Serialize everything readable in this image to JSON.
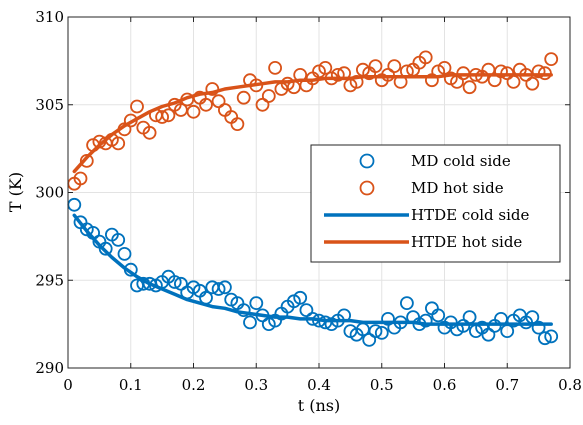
{
  "chart_data": {
    "type": "scatter",
    "xlabel": "t (ns)",
    "ylabel": "T (K)",
    "xlim": [
      0,
      0.8
    ],
    "ylim": [
      290,
      310
    ],
    "x_ticks": [
      "0",
      "0.1",
      "0.2",
      "0.3",
      "0.4",
      "0.5",
      "0.6",
      "0.7",
      "0.8"
    ],
    "y_ticks": [
      "290",
      "295",
      "300",
      "305",
      "310"
    ],
    "grid": true,
    "legend_position": "center-right",
    "colors": {
      "cold": "#0072BD",
      "hot": "#D95319"
    },
    "series": [
      {
        "name": "MD cold side",
        "kind": "markers",
        "color": "#0072BD",
        "x": [
          0.01,
          0.02,
          0.03,
          0.04,
          0.05,
          0.06,
          0.07,
          0.08,
          0.09,
          0.1,
          0.11,
          0.12,
          0.13,
          0.14,
          0.15,
          0.16,
          0.17,
          0.18,
          0.19,
          0.2,
          0.21,
          0.22,
          0.23,
          0.24,
          0.25,
          0.26,
          0.27,
          0.28,
          0.29,
          0.3,
          0.31,
          0.32,
          0.33,
          0.34,
          0.35,
          0.36,
          0.37,
          0.38,
          0.39,
          0.4,
          0.41,
          0.42,
          0.43,
          0.44,
          0.45,
          0.46,
          0.47,
          0.48,
          0.49,
          0.5,
          0.51,
          0.52,
          0.53,
          0.54,
          0.55,
          0.56,
          0.57,
          0.58,
          0.59,
          0.6,
          0.61,
          0.62,
          0.63,
          0.64,
          0.65,
          0.66,
          0.67,
          0.68,
          0.69,
          0.7,
          0.71,
          0.72,
          0.73,
          0.74,
          0.75,
          0.76,
          0.77
        ],
        "y": [
          299.3,
          298.3,
          297.9,
          297.7,
          297.2,
          296.8,
          297.6,
          297.3,
          296.5,
          295.6,
          294.7,
          294.8,
          294.8,
          294.7,
          294.9,
          295.2,
          294.9,
          294.8,
          294.3,
          294.6,
          294.4,
          294.0,
          294.6,
          294.5,
          294.6,
          293.9,
          293.7,
          293.3,
          292.6,
          293.7,
          293.0,
          292.5,
          292.7,
          293.1,
          293.5,
          293.8,
          294.0,
          293.3,
          292.8,
          292.7,
          292.6,
          292.5,
          292.7,
          293.0,
          292.1,
          291.9,
          292.2,
          291.6,
          292.1,
          292.0,
          292.8,
          292.3,
          292.6,
          293.7,
          292.9,
          292.5,
          292.7,
          293.4,
          293.0,
          292.3,
          292.6,
          292.2,
          292.4,
          292.9,
          292.1,
          292.3,
          291.9,
          292.4,
          292.8,
          292.1,
          292.7,
          293.0,
          292.6,
          292.9,
          292.3,
          291.7,
          291.8
        ]
      },
      {
        "name": "MD hot side",
        "kind": "markers",
        "color": "#D95319",
        "x": [
          0.01,
          0.02,
          0.03,
          0.04,
          0.05,
          0.06,
          0.07,
          0.08,
          0.09,
          0.1,
          0.11,
          0.12,
          0.13,
          0.14,
          0.15,
          0.16,
          0.17,
          0.18,
          0.19,
          0.2,
          0.21,
          0.22,
          0.23,
          0.24,
          0.25,
          0.26,
          0.27,
          0.28,
          0.29,
          0.3,
          0.31,
          0.32,
          0.33,
          0.34,
          0.35,
          0.36,
          0.37,
          0.38,
          0.39,
          0.4,
          0.41,
          0.42,
          0.43,
          0.44,
          0.45,
          0.46,
          0.47,
          0.48,
          0.49,
          0.5,
          0.51,
          0.52,
          0.53,
          0.54,
          0.55,
          0.56,
          0.57,
          0.58,
          0.59,
          0.6,
          0.61,
          0.62,
          0.63,
          0.64,
          0.65,
          0.66,
          0.67,
          0.68,
          0.69,
          0.7,
          0.71,
          0.72,
          0.73,
          0.74,
          0.75,
          0.76,
          0.77
        ],
        "y": [
          300.5,
          300.8,
          301.8,
          302.7,
          302.9,
          302.8,
          303.0,
          302.8,
          303.6,
          304.1,
          304.9,
          303.7,
          303.4,
          304.4,
          304.3,
          304.4,
          305.0,
          304.7,
          305.3,
          304.6,
          305.4,
          305.0,
          305.9,
          305.2,
          304.7,
          304.3,
          303.9,
          305.4,
          306.4,
          306.1,
          305.0,
          305.5,
          307.1,
          305.9,
          306.2,
          306.0,
          306.7,
          306.1,
          306.5,
          306.9,
          307.1,
          306.5,
          306.7,
          306.8,
          306.1,
          306.3,
          307.0,
          306.8,
          307.2,
          306.4,
          306.7,
          307.2,
          306.3,
          306.9,
          307.0,
          307.4,
          307.7,
          306.4,
          306.9,
          307.1,
          306.5,
          306.3,
          306.8,
          306.0,
          306.7,
          306.6,
          307.0,
          306.4,
          306.9,
          306.8,
          306.3,
          307.0,
          306.7,
          306.2,
          306.9,
          306.8,
          307.6
        ]
      },
      {
        "name": "HTDE cold side",
        "kind": "line",
        "color": "#0072BD",
        "x": [
          0.01,
          0.03,
          0.05,
          0.07,
          0.09,
          0.11,
          0.13,
          0.15,
          0.17,
          0.19,
          0.21,
          0.23,
          0.25,
          0.27,
          0.29,
          0.31,
          0.33,
          0.35,
          0.37,
          0.39,
          0.41,
          0.43,
          0.45,
          0.47,
          0.49,
          0.51,
          0.53,
          0.55,
          0.57,
          0.59,
          0.61,
          0.63,
          0.65,
          0.67,
          0.69,
          0.71,
          0.73,
          0.75,
          0.77
        ],
        "y": [
          298.7,
          297.8,
          297.0,
          296.3,
          295.7,
          295.2,
          294.8,
          294.5,
          294.2,
          293.9,
          293.7,
          293.5,
          293.4,
          293.2,
          293.1,
          293.0,
          292.9,
          292.9,
          292.8,
          292.8,
          292.7,
          292.7,
          292.7,
          292.6,
          292.6,
          292.6,
          292.6,
          292.6,
          292.5,
          292.5,
          292.5,
          292.5,
          292.5,
          292.5,
          292.5,
          292.5,
          292.5,
          292.5,
          292.5
        ]
      },
      {
        "name": "HTDE hot side",
        "kind": "line",
        "color": "#D95319",
        "x": [
          0.01,
          0.03,
          0.05,
          0.07,
          0.09,
          0.11,
          0.13,
          0.15,
          0.17,
          0.19,
          0.21,
          0.23,
          0.25,
          0.27,
          0.29,
          0.31,
          0.33,
          0.35,
          0.37,
          0.39,
          0.41,
          0.43,
          0.45,
          0.47,
          0.49,
          0.51,
          0.53,
          0.55,
          0.57,
          0.59,
          0.61,
          0.63,
          0.65,
          0.67,
          0.69,
          0.71,
          0.73,
          0.75,
          0.77
        ],
        "y": [
          301.2,
          302.0,
          302.7,
          303.3,
          303.8,
          304.2,
          304.6,
          304.9,
          305.1,
          305.4,
          305.6,
          305.7,
          305.9,
          306.0,
          306.1,
          306.2,
          306.3,
          306.3,
          306.4,
          306.4,
          306.5,
          306.5,
          306.5,
          306.6,
          306.6,
          306.6,
          306.6,
          306.6,
          306.6,
          306.6,
          306.7,
          306.7,
          306.7,
          306.7,
          306.7,
          306.7,
          306.7,
          306.7,
          306.7
        ]
      }
    ]
  }
}
